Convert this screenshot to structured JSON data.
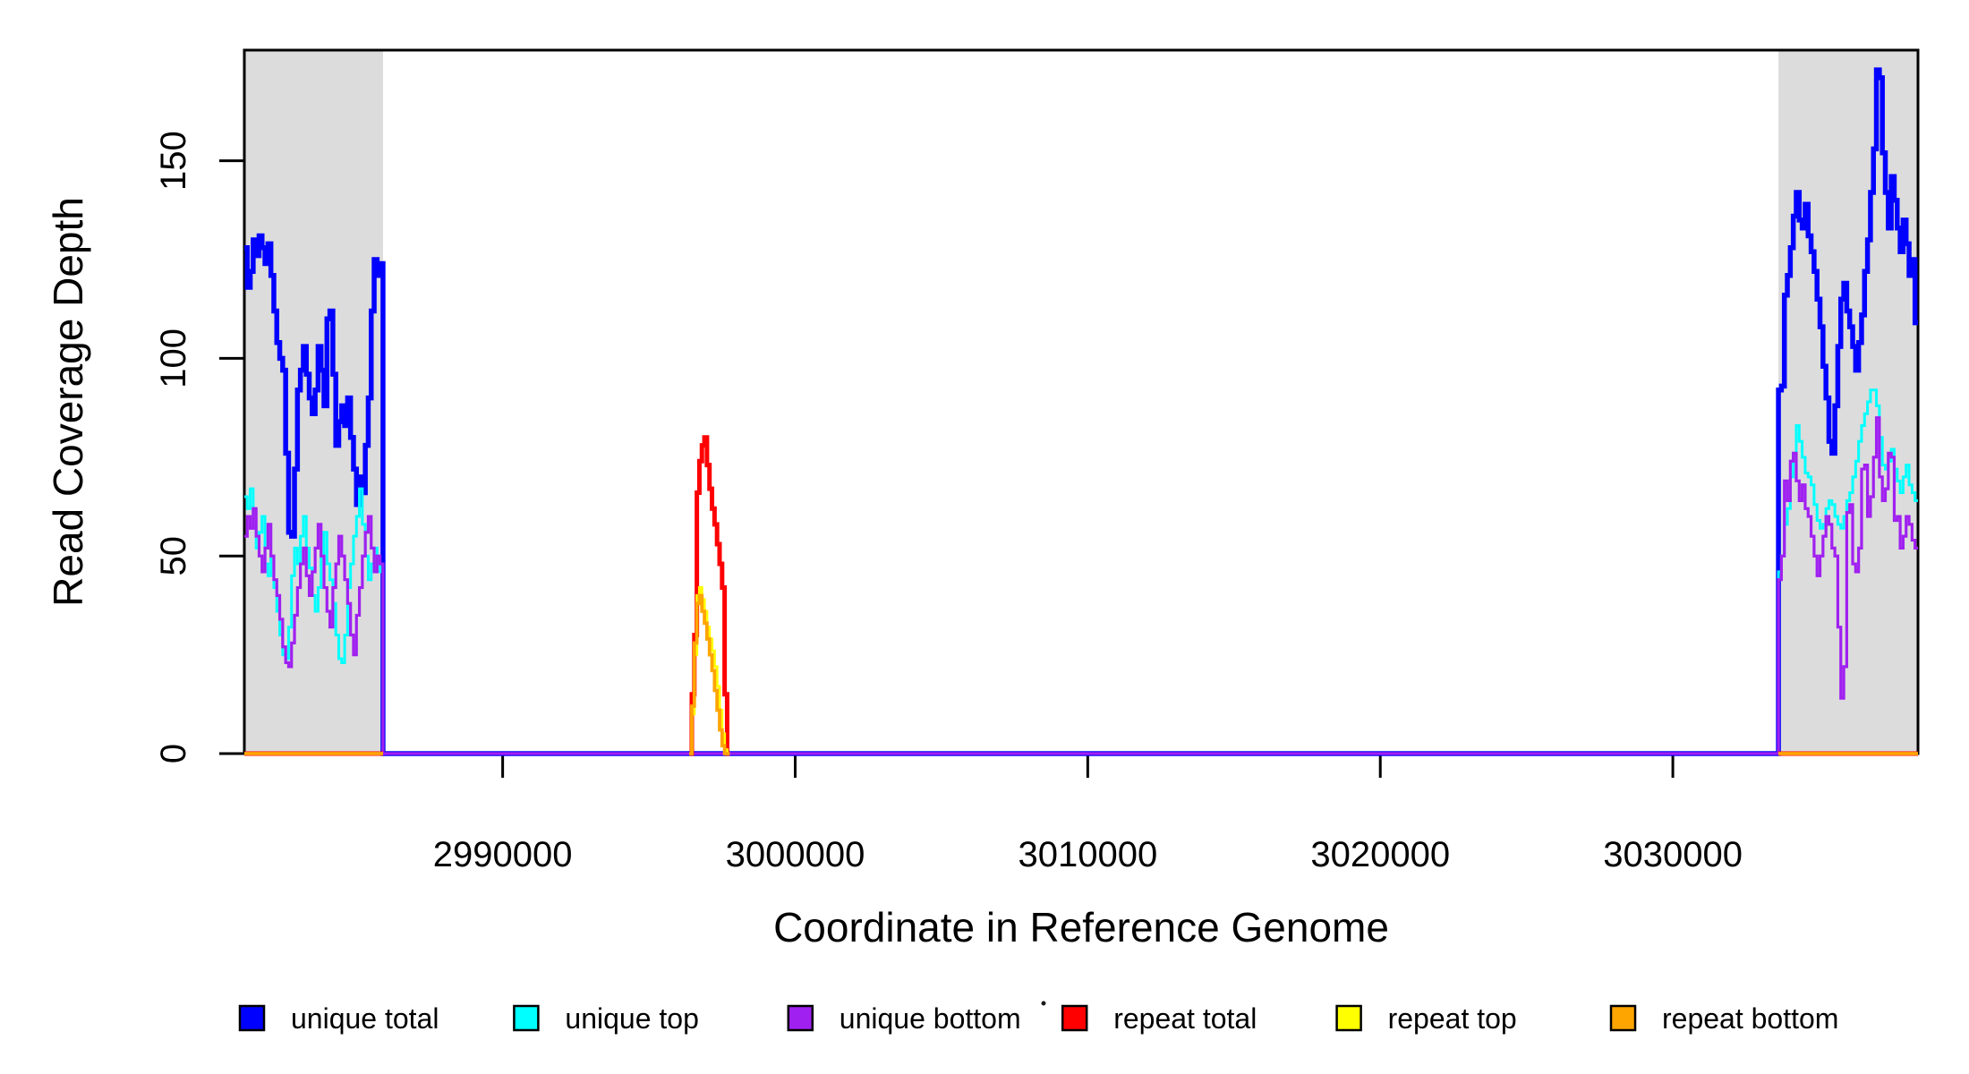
{
  "figure": {
    "background_color": "#ffffff",
    "axis_color": "#000000",
    "shaded_region_color": "#DCDCDC"
  },
  "chart_data": {
    "type": "line",
    "title": "",
    "xlabel": "Coordinate in Reference Genome",
    "ylabel": "Read Coverage Depth",
    "xlim": [
      2981170,
      3038380
    ],
    "ylim": [
      0,
      178
    ],
    "grid": false,
    "legend_position": "bottom",
    "x_ticks": [
      2990000,
      3000000,
      3010000,
      3020000,
      3030000
    ],
    "x_tick_labels": [
      "2990000",
      "3000000",
      "3010000",
      "3020000",
      "3030000"
    ],
    "y_ticks": [
      0,
      50,
      100,
      150
    ],
    "y_tick_labels": [
      "0",
      "50",
      "100",
      "150"
    ],
    "background_regions": [
      {
        "name": "left-unique-region",
        "x0": 2981170,
        "x1": 2985910
      },
      {
        "name": "right-unique-region",
        "x0": 3033610,
        "x1": 3038380
      }
    ],
    "series": [
      {
        "name": "unique total",
        "color": "#0000FF",
        "line_width": 5.5,
        "connect_zero": true,
        "segments": [
          {
            "x0": 2981170,
            "x1": 2985910,
            "values": [
              128,
              118,
              122,
              130,
              126,
              131,
              128,
              124,
              129,
              121,
              112,
              104,
              100,
              97,
              76,
              56,
              55,
              72,
              92,
              97,
              103,
              96,
              90,
              86,
              92,
              103,
              97,
              88,
              110,
              112,
              96,
              78,
              84,
              88,
              83,
              90,
              80,
              72,
              63,
              70,
              66,
              78,
              90,
              112,
              125,
              121,
              124
            ]
          },
          {
            "x0": 3033610,
            "x1": 3038380,
            "values": [
              92,
              93,
              116,
              121,
              128,
              136,
              142,
              135,
              133,
              139,
              131,
              127,
              122,
              115,
              108,
              98,
              90,
              79,
              76,
              88,
              103,
              115,
              119,
              112,
              108,
              103,
              97,
              104,
              111,
              122,
              130,
              142,
              153,
              173,
              171,
              152,
              142,
              133,
              146,
              140,
              133,
              127,
              135,
              129,
              121,
              125,
              109
            ]
          }
        ]
      },
      {
        "name": "unique top",
        "color": "#00FFFF",
        "line_width": 3,
        "connect_zero": true,
        "segments": [
          {
            "x0": 2981170,
            "x1": 2985910,
            "values": [
              65,
              62,
              67,
              58,
              52,
              56,
              60,
              48,
              45,
              50,
              42,
              36,
              30,
              25,
              24,
              32,
              45,
              52,
              48,
              55,
              60,
              52,
              47,
              40,
              36,
              42,
              50,
              56,
              48,
              44,
              38,
              30,
              24,
              23,
              30,
              42,
              48,
              55,
              60,
              67,
              58,
              50,
              44,
              48,
              52,
              46,
              48
            ]
          },
          {
            "x0": 3033610,
            "x1": 3038380,
            "values": [
              46,
              50,
              58,
              62,
              70,
              76,
              83,
              79,
              75,
              71,
              70,
              68,
              63,
              59,
              57,
              58,
              62,
              64,
              63,
              60,
              58,
              57,
              60,
              64,
              66,
              70,
              74,
              79,
              83,
              86,
              89,
              92,
              92,
              88,
              80,
              73,
              72,
              74,
              77,
              72,
              69,
              66,
              70,
              73,
              68,
              66,
              64
            ]
          }
        ]
      },
      {
        "name": "unique bottom",
        "color": "#A020F0",
        "line_width": 3.2,
        "connect_zero": true,
        "segments": [
          {
            "x0": 2981170,
            "x1": 2985910,
            "values": [
              55,
              60,
              57,
              62,
              55,
              50,
              46,
              52,
              58,
              50,
              44,
              40,
              34,
              27,
              23,
              22,
              28,
              35,
              42,
              48,
              52,
              45,
              40,
              46,
              52,
              58,
              50,
              42,
              36,
              32,
              42,
              48,
              55,
              50,
              44,
              38,
              30,
              25,
              35,
              42,
              50,
              56,
              60,
              52,
              46,
              50,
              48
            ]
          },
          {
            "x0": 3033610,
            "x1": 3038380,
            "values": [
              44,
              50,
              69,
              64,
              74,
              76,
              69,
              64,
              68,
              62,
              60,
              55,
              50,
              45,
              50,
              55,
              60,
              58,
              52,
              50,
              32,
              14,
              22,
              61,
              63,
              48,
              46,
              52,
              72,
              73,
              60,
              65,
              75,
              85,
              70,
              64,
              67,
              76,
              75,
              59,
              60,
              52,
              55,
              60,
              58,
              54,
              52
            ]
          }
        ]
      },
      {
        "name": "repeat total",
        "color": "#FF0000",
        "line_width": 5,
        "connect_zero": false,
        "segments": [
          {
            "x0": 2981170,
            "x1": 2985910,
            "const": 0
          },
          {
            "x0": 2996380,
            "x1": 2997760,
            "values": [
              0,
              15,
              30,
              66,
              74,
              78,
              80,
              73,
              67,
              62,
              58,
              53,
              48,
              42,
              15,
              0
            ]
          },
          {
            "x0": 3033610,
            "x1": 3038380,
            "const": 0
          }
        ]
      },
      {
        "name": "repeat top",
        "color": "#FFFF00",
        "line_width": 3,
        "connect_zero": false,
        "segments": [
          {
            "x0": 2981170,
            "x1": 2985910,
            "const": 0
          },
          {
            "x0": 2996380,
            "x1": 2997760,
            "values": [
              0,
              10,
              25,
              40,
              42,
              39,
              36,
              32,
              29,
              26,
              22,
              17,
              11,
              5,
              1,
              0
            ]
          },
          {
            "x0": 3033610,
            "x1": 3038380,
            "const": 0
          }
        ]
      },
      {
        "name": "repeat bottom",
        "color": "#FFA500",
        "line_width": 3.8,
        "connect_zero": false,
        "segments": [
          {
            "x0": 2981170,
            "x1": 2985910,
            "const": 0
          },
          {
            "x0": 2996380,
            "x1": 2997760,
            "values": [
              0,
              12,
              28,
              38,
              40,
              36,
              33,
              29,
              25,
              21,
              16,
              11,
              6,
              2,
              0,
              0
            ]
          },
          {
            "x0": 3033610,
            "x1": 3038380,
            "const": 0
          }
        ]
      }
    ],
    "legend": {
      "items": [
        {
          "label": "unique total",
          "color": "#0000FF"
        },
        {
          "label": "unique top",
          "color": "#00FFFF"
        },
        {
          "label": "unique bottom",
          "color": "#A020F0"
        },
        {
          "label": "repeat total",
          "color": "#FF0000"
        },
        {
          "label": "repeat top",
          "color": "#FFFF00"
        },
        {
          "label": "repeat bottom",
          "color": "#FFA500"
        }
      ]
    }
  }
}
